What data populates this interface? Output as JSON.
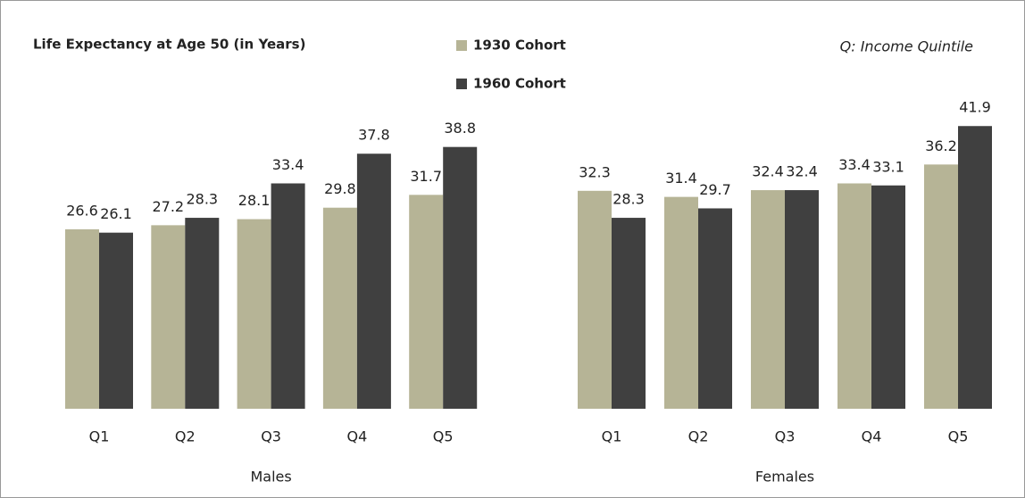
{
  "chart_data": {
    "type": "bar",
    "title": "Life Expectancy at Age 50 (in Years)",
    "annotation": "Q: Income Quintile",
    "categories": [
      "Q1",
      "Q2",
      "Q3",
      "Q4",
      "Q5",
      "Q1",
      "Q2",
      "Q3",
      "Q4",
      "Q5"
    ],
    "group_labels": [
      "Males",
      "Females"
    ],
    "series": [
      {
        "name": "1930 Cohort",
        "color": "#b6b496",
        "values": [
          26.6,
          27.2,
          28.1,
          29.8,
          31.7,
          32.3,
          31.4,
          32.4,
          33.4,
          36.2
        ]
      },
      {
        "name": "1960 Cohort",
        "color": "#404040",
        "values": [
          26.1,
          28.3,
          33.4,
          37.8,
          38.8,
          28.3,
          29.7,
          32.4,
          33.1,
          41.9
        ]
      }
    ],
    "ylim": [
      0,
      50
    ]
  }
}
